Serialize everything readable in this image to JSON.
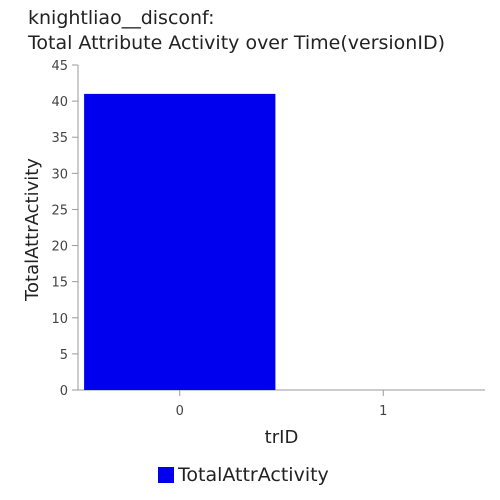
{
  "chart_data": {
    "type": "bar",
    "title_line1": "knightliao__disconf:",
    "title_line2": "Total Attribute Activity over Time(versionID)",
    "xlabel": "trID",
    "ylabel": "TotalAttrActivity",
    "categories": [
      "0",
      "1"
    ],
    "series": [
      {
        "name": "TotalAttrActivity",
        "values": [
          41,
          0
        ],
        "color": "#0000ee"
      }
    ],
    "ylim": [
      0,
      45
    ],
    "yticks": [
      0,
      5,
      10,
      15,
      20,
      25,
      30,
      35,
      40,
      45
    ],
    "grid": false,
    "legend_position": "bottom-center"
  }
}
